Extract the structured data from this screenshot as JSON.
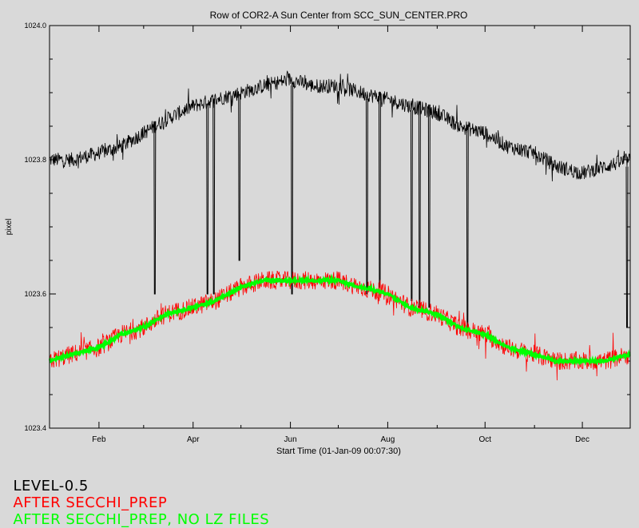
{
  "chart_data": {
    "type": "line",
    "title": "Row of COR2-A Sun Center from SCC_SUN_CENTER.PRO",
    "xlabel": "Start Time (01-Jan-09 00:07:30)",
    "ylabel": "pixel",
    "x_ticks": [
      "Feb",
      "Apr",
      "Jun",
      "Aug",
      "Oct",
      "Dec"
    ],
    "y_ticks": [
      "1023.4",
      "1023.6",
      "1023.8",
      "1024.0"
    ],
    "xlim": [
      "2009-01-01",
      "2009-12-31"
    ],
    "ylim": [
      1023.4,
      1024.0
    ],
    "series": [
      {
        "name": "LEVEL-0.5",
        "color": "#000000",
        "x": [
          "2009-01-01",
          "2009-01-15",
          "2009-02-01",
          "2009-02-15",
          "2009-03-01",
          "2009-03-15",
          "2009-04-01",
          "2009-04-15",
          "2009-05-01",
          "2009-05-15",
          "2009-06-01",
          "2009-06-15",
          "2009-07-01",
          "2009-07-15",
          "2009-08-01",
          "2009-08-15",
          "2009-09-01",
          "2009-09-15",
          "2009-10-01",
          "2009-10-15",
          "2009-11-01",
          "2009-11-15",
          "2009-12-01",
          "2009-12-15",
          "2009-12-31"
        ],
        "values": [
          1023.8,
          1023.8,
          1023.81,
          1023.82,
          1023.84,
          1023.86,
          1023.88,
          1023.89,
          1023.9,
          1023.91,
          1023.92,
          1023.91,
          1023.91,
          1023.9,
          1023.89,
          1023.88,
          1023.87,
          1023.85,
          1023.84,
          1023.82,
          1023.81,
          1023.79,
          1023.78,
          1023.79,
          1023.8
        ],
        "dropouts": [
          {
            "x": "2009-03-08",
            "value": 1023.6
          },
          {
            "x": "2009-04-10",
            "value": 1023.6
          },
          {
            "x": "2009-04-14",
            "value": 1023.6
          },
          {
            "x": "2009-04-30",
            "value": 1023.65
          },
          {
            "x": "2009-06-02",
            "value": 1023.6
          },
          {
            "x": "2009-07-19",
            "value": 1023.6
          },
          {
            "x": "2009-07-27",
            "value": 1023.61
          },
          {
            "x": "2009-08-16",
            "value": 1023.59
          },
          {
            "x": "2009-08-21",
            "value": 1023.58
          },
          {
            "x": "2009-08-27",
            "value": 1023.58
          },
          {
            "x": "2009-09-20",
            "value": 1023.55
          },
          {
            "x": "2009-12-29",
            "value": 1023.55
          }
        ]
      },
      {
        "name": "AFTER SECCHI_PREP",
        "color": "#ff0000",
        "x": [
          "2009-01-01",
          "2009-01-15",
          "2009-02-01",
          "2009-02-15",
          "2009-03-01",
          "2009-03-15",
          "2009-04-01",
          "2009-04-15",
          "2009-05-01",
          "2009-05-15",
          "2009-06-01",
          "2009-06-15",
          "2009-07-01",
          "2009-07-15",
          "2009-08-01",
          "2009-08-15",
          "2009-09-01",
          "2009-09-15",
          "2009-10-01",
          "2009-10-15",
          "2009-11-01",
          "2009-11-15",
          "2009-12-01",
          "2009-12-15",
          "2009-12-31"
        ],
        "values": [
          1023.5,
          1023.51,
          1023.52,
          1023.54,
          1023.55,
          1023.57,
          1023.58,
          1023.59,
          1023.61,
          1023.62,
          1023.62,
          1023.62,
          1023.62,
          1023.61,
          1023.6,
          1023.58,
          1023.57,
          1023.55,
          1023.54,
          1023.52,
          1023.51,
          1023.5,
          1023.5,
          1023.5,
          1023.51
        ]
      },
      {
        "name": "AFTER SECCHI_PREP, NO LZ FILES",
        "color": "#00ff00",
        "x": [
          "2009-01-01",
          "2009-01-15",
          "2009-02-01",
          "2009-02-15",
          "2009-03-01",
          "2009-03-15",
          "2009-04-01",
          "2009-04-15",
          "2009-05-01",
          "2009-05-15",
          "2009-06-01",
          "2009-06-15",
          "2009-07-01",
          "2009-07-15",
          "2009-08-01",
          "2009-08-15",
          "2009-09-01",
          "2009-09-15",
          "2009-10-01",
          "2009-10-15",
          "2009-11-01",
          "2009-11-15",
          "2009-12-01",
          "2009-12-15",
          "2009-12-31"
        ],
        "values": [
          1023.5,
          1023.51,
          1023.52,
          1023.54,
          1023.55,
          1023.57,
          1023.58,
          1023.59,
          1023.61,
          1023.62,
          1023.62,
          1023.62,
          1023.62,
          1023.61,
          1023.6,
          1023.58,
          1023.57,
          1023.55,
          1023.54,
          1023.52,
          1023.51,
          1023.5,
          1023.5,
          1023.5,
          1023.51
        ]
      }
    ],
    "legend_placement": "bottom"
  }
}
